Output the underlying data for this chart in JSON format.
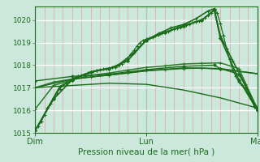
{
  "bg_color": "#cce8dc",
  "xlabel": "Pression niveau de la mer( hPa )",
  "ylim": [
    1015.0,
    1020.6
  ],
  "yticks": [
    1015,
    1016,
    1017,
    1018,
    1019,
    1020
  ],
  "xtick_labels": [
    "Dim",
    "Lun",
    "Mar"
  ],
  "xtick_positions": [
    0,
    36,
    72
  ],
  "series": [
    {
      "x": [
        0,
        1,
        2,
        3,
        4,
        5,
        6,
        7,
        8,
        9,
        10,
        11,
        12,
        13,
        14,
        15,
        16,
        17,
        18,
        19,
        20,
        21,
        22,
        23,
        24,
        25,
        26,
        27,
        28,
        29,
        30,
        31,
        32,
        33,
        34,
        35,
        36,
        37,
        38,
        39,
        40,
        41,
        42,
        43,
        44,
        45,
        46,
        47,
        48,
        49,
        50,
        51,
        52,
        53,
        54,
        55,
        56,
        57,
        58,
        59,
        60,
        61,
        62,
        63,
        64,
        65,
        66,
        67,
        68,
        69,
        70,
        71,
        72
      ],
      "y": [
        1015.1,
        1015.3,
        1015.5,
        1015.8,
        1016.1,
        1016.3,
        1016.55,
        1016.75,
        1016.95,
        1017.1,
        1017.2,
        1017.3,
        1017.4,
        1017.45,
        1017.5,
        1017.55,
        1017.6,
        1017.65,
        1017.7,
        1017.73,
        1017.77,
        1017.8,
        1017.82,
        1017.85,
        1017.87,
        1017.9,
        1017.92,
        1017.97,
        1018.05,
        1018.15,
        1018.3,
        1018.5,
        1018.65,
        1018.85,
        1019.0,
        1019.1,
        1019.15,
        1019.2,
        1019.25,
        1019.3,
        1019.35,
        1019.4,
        1019.45,
        1019.5,
        1019.55,
        1019.58,
        1019.62,
        1019.67,
        1019.72,
        1019.77,
        1019.82,
        1019.88,
        1019.93,
        1019.97,
        1020.02,
        1020.1,
        1020.2,
        1020.3,
        1020.45,
        1020.3,
        1019.85,
        1019.3,
        1018.75,
        1018.25,
        1017.8,
        1017.5,
        1017.25,
        1017.1,
        1017.0,
        1016.75,
        1016.5,
        1016.15,
        1016.0
      ],
      "color": "#1a6b1a",
      "lw": 0.9,
      "marker": "+",
      "ms": 2.5
    },
    {
      "x": [
        0,
        8,
        14,
        20,
        26,
        32,
        36,
        40,
        44,
        48,
        52,
        56,
        58,
        60,
        64,
        68,
        72
      ],
      "y": [
        1015.1,
        1017.05,
        1017.5,
        1017.75,
        1017.9,
        1018.55,
        1019.1,
        1019.4,
        1019.65,
        1019.8,
        1020.05,
        1020.4,
        1020.5,
        1019.3,
        1018.2,
        1017.15,
        1016.0
      ],
      "color": "#1a6b1a",
      "lw": 1.2,
      "marker": "+",
      "ms": 3.0
    },
    {
      "x": [
        0,
        6,
        12,
        18,
        24,
        30,
        36,
        42,
        48,
        54,
        60,
        66,
        72
      ],
      "y": [
        1016.05,
        1017.1,
        1017.35,
        1017.55,
        1017.65,
        1017.78,
        1017.9,
        1017.97,
        1018.05,
        1018.08,
        1018.1,
        1017.85,
        1016.05
      ],
      "color": "#2a7a2a",
      "lw": 1.1,
      "marker": "+",
      "ms": 2.5
    },
    {
      "x": [
        0,
        6,
        12,
        18,
        24,
        30,
        36,
        42,
        48,
        54,
        60,
        66,
        72
      ],
      "y": [
        1017.0,
        1017.25,
        1017.38,
        1017.48,
        1017.56,
        1017.65,
        1017.75,
        1017.8,
        1017.85,
        1017.87,
        1017.82,
        1017.72,
        1017.62
      ],
      "color": "#2a7a2a",
      "lw": 1.1,
      "marker": "+",
      "ms": 2.5
    },
    {
      "x": [
        0,
        12,
        24,
        36,
        48,
        60,
        72
      ],
      "y": [
        1017.0,
        1017.38,
        1017.56,
        1017.75,
        1017.88,
        1017.85,
        1017.62
      ],
      "color": "#1a6b1a",
      "lw": 1.0,
      "marker": null,
      "ms": 0
    },
    {
      "x": [
        0,
        12,
        24,
        36,
        48,
        60,
        72
      ],
      "y": [
        1017.0,
        1017.1,
        1017.2,
        1017.15,
        1016.9,
        1016.55,
        1016.1
      ],
      "color": "#1a6b1a",
      "lw": 1.0,
      "marker": null,
      "ms": 0
    },
    {
      "x": [
        0,
        6,
        12,
        18,
        24,
        30,
        36,
        42,
        48,
        54,
        58,
        60,
        66,
        72
      ],
      "y": [
        1015.1,
        1016.5,
        1017.35,
        1017.7,
        1017.85,
        1018.2,
        1019.1,
        1019.45,
        1019.75,
        1020.0,
        1020.45,
        1019.2,
        1017.35,
        1016.0
      ],
      "color": "#1a6b1a",
      "lw": 1.2,
      "marker": "D",
      "ms": 2.0
    },
    {
      "x": [
        0,
        12,
        24,
        36,
        48,
        58,
        60,
        66,
        72
      ],
      "y": [
        1017.3,
        1017.5,
        1017.6,
        1017.8,
        1017.95,
        1018.0,
        1017.85,
        1017.6,
        1016.1
      ],
      "color": "#1a6b1a",
      "lw": 1.0,
      "marker": "D",
      "ms": 1.8
    }
  ]
}
